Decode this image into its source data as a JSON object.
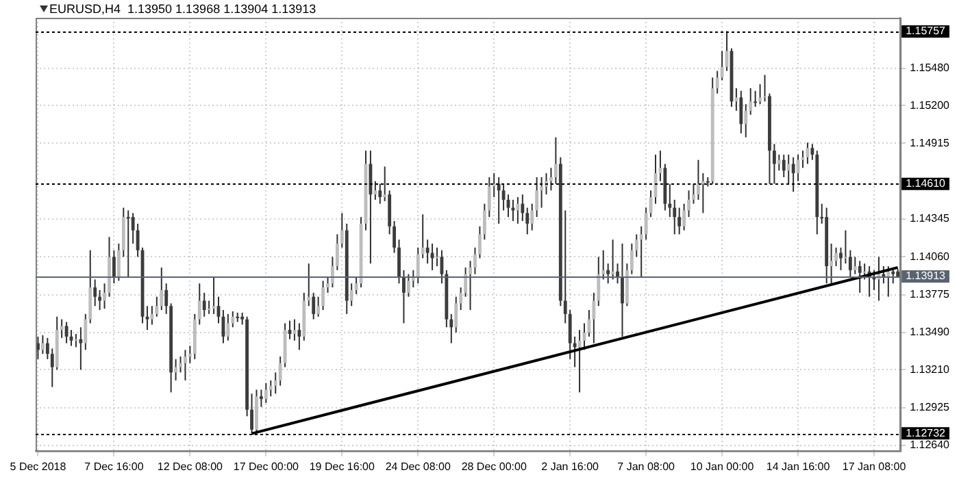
{
  "chart_data": {
    "type": "candlestick",
    "title": "EURUSD,H4  1.13950 1.13968 1.13904 1.13913",
    "categories": [
      "5 Dec 2018",
      null,
      null,
      null,
      null,
      null,
      null,
      null,
      null,
      null,
      null,
      null,
      null,
      null,
      null,
      null,
      "7 Dec 16:00",
      null,
      null,
      null,
      null,
      null,
      null,
      null,
      null,
      null,
      null,
      null,
      null,
      null,
      null,
      null,
      "12 Dec 08:00",
      null,
      null,
      null,
      null,
      null,
      null,
      null,
      null,
      null,
      null,
      null,
      null,
      null,
      null,
      null,
      "17 Dec 00:00",
      null,
      null,
      null,
      null,
      null,
      null,
      null,
      null,
      null,
      null,
      null,
      null,
      null,
      null,
      null,
      "19 Dec 16:00",
      null,
      null,
      null,
      null,
      null,
      null,
      null,
      null,
      null,
      null,
      null,
      null,
      null,
      null,
      null,
      "24 Dec 08:00",
      null,
      null,
      null,
      null,
      null,
      null,
      null,
      null,
      null,
      null,
      null,
      null,
      null,
      null,
      null,
      "28 Dec 00:00",
      null,
      null,
      null,
      null,
      null,
      null,
      null,
      null,
      null,
      null,
      null,
      null,
      null,
      null,
      null,
      "2 Jan 16:00",
      null,
      null,
      null,
      null,
      null,
      null,
      null,
      null,
      null,
      null,
      null,
      null,
      null,
      null,
      null,
      "7 Jan 08:00",
      null,
      null,
      null,
      null,
      null,
      null,
      null,
      null,
      null,
      null,
      null,
      null,
      null,
      null,
      null,
      "10 Jan 00:00",
      null,
      null,
      null,
      null,
      null,
      null,
      null,
      null,
      null,
      null,
      null,
      null,
      null,
      null,
      null,
      "14 Jan 16:00",
      null,
      null,
      null,
      null,
      null,
      null,
      null,
      null,
      null,
      null,
      null,
      null,
      null,
      null,
      null,
      "17 Jan 08:00",
      null,
      null,
      null,
      null,
      null
    ],
    "ohlc": [
      [
        1.1341,
        1.1346,
        1.1329,
        1.1336
      ],
      [
        1.1336,
        1.1347,
        1.1333,
        1.1341
      ],
      [
        1.1341,
        1.1345,
        1.1329,
        1.1333
      ],
      [
        1.1333,
        1.1337,
        1.1308,
        1.1323
      ],
      [
        1.1323,
        1.1361,
        1.1321,
        1.1351
      ],
      [
        1.1351,
        1.1359,
        1.1345,
        1.1354
      ],
      [
        1.1354,
        1.1357,
        1.1341,
        1.1346
      ],
      [
        1.1346,
        1.1351,
        1.1339,
        1.1343
      ],
      [
        1.1343,
        1.1348,
        1.1338,
        1.1344
      ],
      [
        1.1344,
        1.1353,
        1.1321,
        1.1341
      ],
      [
        1.1341,
        1.1363,
        1.1336,
        1.1359
      ],
      [
        1.1359,
        1.1411,
        1.1356,
        1.1383
      ],
      [
        1.1383,
        1.1389,
        1.1369,
        1.1376
      ],
      [
        1.1376,
        1.1381,
        1.1366,
        1.1373
      ],
      [
        1.1373,
        1.1386,
        1.1367,
        1.1379
      ],
      [
        1.1379,
        1.1421,
        1.1376,
        1.1406
      ],
      [
        1.1406,
        1.1411,
        1.1386,
        1.1391
      ],
      [
        1.1391,
        1.1416,
        1.1388,
        1.1411
      ],
      [
        1.1411,
        1.1443,
        1.1406,
        1.1436
      ],
      [
        1.1436,
        1.1441,
        1.1391,
        1.1436
      ],
      [
        1.1436,
        1.1439,
        1.1416,
        1.1426
      ],
      [
        1.1426,
        1.1431,
        1.1406,
        1.1411
      ],
      [
        1.1411,
        1.1413,
        1.1356,
        1.1361
      ],
      [
        1.1361,
        1.1369,
        1.1351,
        1.1359
      ],
      [
        1.1359,
        1.1369,
        1.1355,
        1.1363
      ],
      [
        1.1363,
        1.1376,
        1.1361,
        1.1369
      ],
      [
        1.1369,
        1.1398,
        1.1366,
        1.1381
      ],
      [
        1.1381,
        1.1386,
        1.1363,
        1.1369
      ],
      [
        1.1369,
        1.1371,
        1.1304,
        1.1319
      ],
      [
        1.1319,
        1.1329,
        1.1313,
        1.1323
      ],
      [
        1.1323,
        1.1331,
        1.1319,
        1.1326
      ],
      [
        1.1326,
        1.1336,
        1.1313,
        1.1331
      ],
      [
        1.1331,
        1.1339,
        1.1326,
        1.1333
      ],
      [
        1.1333,
        1.1363,
        1.1329,
        1.1359
      ],
      [
        1.1359,
        1.1386,
        1.1355,
        1.1373
      ],
      [
        1.1373,
        1.1379,
        1.1361,
        1.1366
      ],
      [
        1.1366,
        1.1373,
        1.1363,
        1.1367
      ],
      [
        1.1367,
        1.1391,
        1.1363,
        1.1369
      ],
      [
        1.1369,
        1.1376,
        1.1356,
        1.1361
      ],
      [
        1.1361,
        1.1366,
        1.1341,
        1.1346
      ],
      [
        1.1346,
        1.1363,
        1.1343,
        1.1356
      ],
      [
        1.1356,
        1.1365,
        1.1353,
        1.1361
      ],
      [
        1.1361,
        1.1364,
        1.1357,
        1.1361
      ],
      [
        1.1361,
        1.1364,
        1.1355,
        1.1359
      ],
      [
        1.1359,
        1.1361,
        1.1286,
        1.1291
      ],
      [
        1.1291,
        1.1303,
        1.1273,
        1.1276
      ],
      [
        1.1276,
        1.1306,
        1.1274,
        1.1301
      ],
      [
        1.1301,
        1.1306,
        1.1293,
        1.1299
      ],
      [
        1.1299,
        1.1311,
        1.1296,
        1.1306
      ],
      [
        1.1306,
        1.1313,
        1.1301,
        1.1309
      ],
      [
        1.1309,
        1.1319,
        1.1303,
        1.1313
      ],
      [
        1.1313,
        1.1331,
        1.1309,
        1.1326
      ],
      [
        1.1326,
        1.1356,
        1.1323,
        1.1351
      ],
      [
        1.1351,
        1.1358,
        1.1344,
        1.1348
      ],
      [
        1.1348,
        1.1359,
        1.1343,
        1.1351
      ],
      [
        1.1351,
        1.1356,
        1.1336,
        1.1346
      ],
      [
        1.1346,
        1.1379,
        1.1343,
        1.1373
      ],
      [
        1.1373,
        1.1401,
        1.1369,
        1.1376
      ],
      [
        1.1376,
        1.1379,
        1.1359,
        1.1363
      ],
      [
        1.1363,
        1.1376,
        1.1361,
        1.1369
      ],
      [
        1.1369,
        1.1388,
        1.1366,
        1.1383
      ],
      [
        1.1383,
        1.1391,
        1.1379,
        1.1386
      ],
      [
        1.1386,
        1.1406,
        1.1383,
        1.1399
      ],
      [
        1.1399,
        1.1423,
        1.1396,
        1.1416
      ],
      [
        1.1416,
        1.1439,
        1.1413,
        1.1426
      ],
      [
        1.1426,
        1.1431,
        1.1363,
        1.1373
      ],
      [
        1.1373,
        1.1386,
        1.1369,
        1.1381
      ],
      [
        1.1381,
        1.1391,
        1.1378,
        1.1386
      ],
      [
        1.1386,
        1.1436,
        1.1383,
        1.1431
      ],
      [
        1.1431,
        1.1486,
        1.1426,
        1.1476
      ],
      [
        1.1476,
        1.1486,
        1.1401,
        1.1453
      ],
      [
        1.1453,
        1.1463,
        1.1449,
        1.1456
      ],
      [
        1.1456,
        1.1461,
        1.1446,
        1.1451
      ],
      [
        1.1451,
        1.1474,
        1.1448,
        1.1453
      ],
      [
        1.1453,
        1.1456,
        1.1423,
        1.1429
      ],
      [
        1.1429,
        1.1433,
        1.1409,
        1.1413
      ],
      [
        1.1413,
        1.1419,
        1.1386,
        1.1391
      ],
      [
        1.1391,
        1.1396,
        1.1356,
        1.1379
      ],
      [
        1.1379,
        1.1393,
        1.1376,
        1.1388
      ],
      [
        1.1388,
        1.1396,
        1.1383,
        1.1391
      ],
      [
        1.1391,
        1.1413,
        1.1386,
        1.1408
      ],
      [
        1.1408,
        1.1438,
        1.1405,
        1.1413
      ],
      [
        1.1413,
        1.1419,
        1.1401,
        1.1409
      ],
      [
        1.1409,
        1.1416,
        1.1396,
        1.1405
      ],
      [
        1.1405,
        1.1413,
        1.1399,
        1.1406
      ],
      [
        1.1406,
        1.1411,
        1.1386,
        1.1393
      ],
      [
        1.1393,
        1.1396,
        1.1353,
        1.1359
      ],
      [
        1.1359,
        1.1363,
        1.1341,
        1.1353
      ],
      [
        1.1353,
        1.1376,
        1.1349,
        1.1371
      ],
      [
        1.1371,
        1.1383,
        1.1366,
        1.1379
      ],
      [
        1.1379,
        1.1398,
        1.1376,
        1.1393
      ],
      [
        1.1393,
        1.1403,
        1.1366,
        1.1398
      ],
      [
        1.1398,
        1.1413,
        1.1393,
        1.1408
      ],
      [
        1.1408,
        1.1429,
        1.1405,
        1.1423
      ],
      [
        1.1423,
        1.1446,
        1.1419,
        1.1441
      ],
      [
        1.1441,
        1.1466,
        1.1436,
        1.1459
      ],
      [
        1.1459,
        1.1469,
        1.1451,
        1.1461
      ],
      [
        1.1461,
        1.1466,
        1.1431,
        1.1456
      ],
      [
        1.1456,
        1.1461,
        1.1441,
        1.1449
      ],
      [
        1.1449,
        1.1453,
        1.1436,
        1.1443
      ],
      [
        1.1443,
        1.1449,
        1.1433,
        1.1441
      ],
      [
        1.1441,
        1.1451,
        1.1431,
        1.1446
      ],
      [
        1.1446,
        1.1453,
        1.1433,
        1.1439
      ],
      [
        1.1439,
        1.1443,
        1.1423,
        1.1431
      ],
      [
        1.1431,
        1.1446,
        1.1426,
        1.1441
      ],
      [
        1.1441,
        1.1466,
        1.1436,
        1.1456
      ],
      [
        1.1456,
        1.1466,
        1.1443,
        1.1459
      ],
      [
        1.1459,
        1.1469,
        1.1453,
        1.1463
      ],
      [
        1.1463,
        1.1473,
        1.1456,
        1.1466
      ],
      [
        1.1466,
        1.1496,
        1.1461,
        1.1476
      ],
      [
        1.1476,
        1.1481,
        1.1369,
        1.1373
      ],
      [
        1.1373,
        1.1441,
        1.1356,
        1.1363
      ],
      [
        1.1363,
        1.1366,
        1.1329,
        1.1341
      ],
      [
        1.1341,
        1.1346,
        1.1323,
        1.1338
      ],
      [
        1.1338,
        1.1351,
        1.1304,
        1.1343
      ],
      [
        1.1343,
        1.1356,
        1.1336,
        1.1349
      ],
      [
        1.1349,
        1.1366,
        1.1346,
        1.1359
      ],
      [
        1.1359,
        1.1379,
        1.1341,
        1.1373
      ],
      [
        1.1373,
        1.1406,
        1.1369,
        1.1393
      ],
      [
        1.1393,
        1.1411,
        1.1389,
        1.1396
      ],
      [
        1.1396,
        1.1401,
        1.1386,
        1.1393
      ],
      [
        1.1393,
        1.1419,
        1.1389,
        1.1395
      ],
      [
        1.1395,
        1.1401,
        1.1386,
        1.1391
      ],
      [
        1.1391,
        1.1416,
        1.1346,
        1.1371
      ],
      [
        1.1371,
        1.1401,
        1.1369,
        1.1396
      ],
      [
        1.1396,
        1.1416,
        1.1393,
        1.1411
      ],
      [
        1.1411,
        1.1423,
        1.1406,
        1.1419
      ],
      [
        1.1419,
        1.1429,
        1.1391,
        1.1423
      ],
      [
        1.1423,
        1.1443,
        1.1419,
        1.1439
      ],
      [
        1.1439,
        1.1456,
        1.1436,
        1.1451
      ],
      [
        1.1451,
        1.1483,
        1.1446,
        1.1469
      ],
      [
        1.1469,
        1.1486,
        1.1463,
        1.1473
      ],
      [
        1.1473,
        1.1476,
        1.1441,
        1.1446
      ],
      [
        1.1446,
        1.1461,
        1.1436,
        1.1443
      ],
      [
        1.1443,
        1.1449,
        1.1423,
        1.1436
      ],
      [
        1.1436,
        1.1443,
        1.1423,
        1.1429
      ],
      [
        1.1429,
        1.1446,
        1.1426,
        1.1441
      ],
      [
        1.1441,
        1.1456,
        1.1436,
        1.1449
      ],
      [
        1.1449,
        1.1461,
        1.1446,
        1.1453
      ],
      [
        1.1453,
        1.1479,
        1.1449,
        1.1461
      ],
      [
        1.1461,
        1.1469,
        1.1439,
        1.1463
      ],
      [
        1.1463,
        1.1466,
        1.1459,
        1.1463
      ],
      [
        1.1463,
        1.1541,
        1.1461,
        1.1533
      ],
      [
        1.1533,
        1.1546,
        1.1529,
        1.1541
      ],
      [
        1.1541,
        1.1561,
        1.1539,
        1.1549
      ],
      [
        1.1549,
        1.1576,
        1.1546,
        1.1561
      ],
      [
        1.1561,
        1.1563,
        1.1519,
        1.1523
      ],
      [
        1.1523,
        1.1533,
        1.1516,
        1.1526
      ],
      [
        1.1526,
        1.1531,
        1.1499,
        1.1506
      ],
      [
        1.1506,
        1.1521,
        1.1496,
        1.1516
      ],
      [
        1.1516,
        1.1533,
        1.1513,
        1.1523
      ],
      [
        1.1523,
        1.1531,
        1.1519,
        1.1523
      ],
      [
        1.1523,
        1.1536,
        1.1521,
        1.1526
      ],
      [
        1.1526,
        1.1543,
        1.1523,
        1.1527
      ],
      [
        1.1527,
        1.1529,
        1.1461,
        1.1486
      ],
      [
        1.1486,
        1.1491,
        1.1461,
        1.1476
      ],
      [
        1.1476,
        1.1483,
        1.1471,
        1.1479
      ],
      [
        1.1479,
        1.1483,
        1.1466,
        1.1471
      ],
      [
        1.1471,
        1.1483,
        1.1461,
        1.1476
      ],
      [
        1.1476,
        1.1481,
        1.1455,
        1.1469
      ],
      [
        1.1469,
        1.1483,
        1.1463,
        1.1479
      ],
      [
        1.1479,
        1.1486,
        1.1473,
        1.1481
      ],
      [
        1.1481,
        1.1492,
        1.1476,
        1.1488
      ],
      [
        1.1488,
        1.1491,
        1.1479,
        1.1483
      ],
      [
        1.1483,
        1.1486,
        1.1423,
        1.1436
      ],
      [
        1.1436,
        1.1446,
        1.1431,
        1.1436
      ],
      [
        1.1436,
        1.1443,
        1.1386,
        1.1399
      ],
      [
        1.1399,
        1.1416,
        1.1386,
        1.1403
      ],
      [
        1.1403,
        1.1413,
        1.1399,
        1.1409
      ],
      [
        1.1409,
        1.1413,
        1.1396,
        1.1405
      ],
      [
        1.1405,
        1.1426,
        1.1401,
        1.1406
      ],
      [
        1.1406,
        1.1411,
        1.1391,
        1.1396
      ],
      [
        1.1396,
        1.1406,
        1.1393,
        1.1399
      ],
      [
        1.1399,
        1.1403,
        1.1379,
        1.1394
      ],
      [
        1.1394,
        1.1401,
        1.1389,
        1.1395
      ],
      [
        1.1395,
        1.1399,
        1.1376,
        1.1391
      ],
      [
        1.1391,
        1.1396,
        1.1381,
        1.1389
      ],
      [
        1.1389,
        1.1406,
        1.1373,
        1.1393
      ],
      [
        1.1393,
        1.1399,
        1.1386,
        1.1391
      ],
      [
        1.1391,
        1.1399,
        1.1376,
        1.1395
      ],
      [
        1.1395,
        1.1398,
        1.1386,
        1.1393
      ],
      [
        1.1395,
        1.13968,
        1.13904,
        1.13913
      ]
    ],
    "colors": [
      "#3c3c3c",
      "#bdbdbd",
      "#3c3c3c",
      "#3c3c3c",
      "#bdbdbd",
      "#bdbdbd",
      "#3c3c3c",
      "#3c3c3c",
      "#bdbdbd",
      "#3c3c3c",
      "#bdbdbd",
      "#bdbdbd",
      "#3c3c3c",
      "#3c3c3c",
      "#bdbdbd",
      "#bdbdbd",
      "#3c3c3c",
      "#bdbdbd",
      "#bdbdbd",
      "#3c3c3c",
      "#3c3c3c",
      "#3c3c3c",
      "#3c3c3c",
      "#3c3c3c",
      "#bdbdbd",
      "#bdbdbd",
      "#bdbdbd",
      "#3c3c3c",
      "#3c3c3c",
      "#bdbdbd",
      "#bdbdbd",
      "#bdbdbd",
      "#bdbdbd",
      "#bdbdbd",
      "#bdbdbd",
      "#3c3c3c",
      "#bdbdbd",
      "#bdbdbd",
      "#3c3c3c",
      "#3c3c3c",
      "#bdbdbd",
      "#bdbdbd",
      "#3c3c3c",
      "#3c3c3c",
      "#3c3c3c",
      "#3c3c3c",
      "#bdbdbd",
      "#3c3c3c",
      "#bdbdbd",
      "#bdbdbd",
      "#bdbdbd",
      "#bdbdbd",
      "#bdbdbd",
      "#3c3c3c",
      "#bdbdbd",
      "#3c3c3c",
      "#bdbdbd",
      "#bdbdbd",
      "#3c3c3c",
      "#bdbdbd",
      "#bdbdbd",
      "#bdbdbd",
      "#bdbdbd",
      "#bdbdbd",
      "#bdbdbd",
      "#3c3c3c",
      "#bdbdbd",
      "#bdbdbd",
      "#bdbdbd",
      "#bdbdbd",
      "#3c3c3c",
      "#bdbdbd",
      "#3c3c3c",
      "#bdbdbd",
      "#3c3c3c",
      "#3c3c3c",
      "#3c3c3c",
      "#3c3c3c",
      "#bdbdbd",
      "#bdbdbd",
      "#bdbdbd",
      "#bdbdbd",
      "#3c3c3c",
      "#3c3c3c",
      "#bdbdbd",
      "#3c3c3c",
      "#3c3c3c",
      "#3c3c3c",
      "#bdbdbd",
      "#bdbdbd",
      "#bdbdbd",
      "#bdbdbd",
      "#bdbdbd",
      "#bdbdbd",
      "#bdbdbd",
      "#bdbdbd",
      "#bdbdbd",
      "#3c3c3c",
      "#3c3c3c",
      "#3c3c3c",
      "#3c3c3c",
      "#bdbdbd",
      "#3c3c3c",
      "#3c3c3c",
      "#bdbdbd",
      "#bdbdbd",
      "#bdbdbd",
      "#bdbdbd",
      "#bdbdbd",
      "#bdbdbd",
      "#3c3c3c",
      "#3c3c3c",
      "#3c3c3c",
      "#3c3c3c",
      "#bdbdbd",
      "#bdbdbd",
      "#bdbdbd",
      "#bdbdbd",
      "#bdbdbd",
      "#bdbdbd",
      "#3c3c3c",
      "#bdbdbd",
      "#3c3c3c",
      "#3c3c3c",
      "#bdbdbd",
      "#bdbdbd",
      "#bdbdbd",
      "#bdbdbd",
      "#bdbdbd",
      "#bdbdbd",
      "#bdbdbd",
      "#bdbdbd",
      "#3c3c3c",
      "#3c3c3c",
      "#3c3c3c",
      "#3c3c3c",
      "#bdbdbd",
      "#bdbdbd",
      "#bdbdbd",
      "#bdbdbd",
      "#bdbdbd",
      "#3c3c3c",
      "#bdbdbd",
      "#bdbdbd",
      "#bdbdbd",
      "#bdbdbd",
      "#3c3c3c",
      "#bdbdbd",
      "#3c3c3c",
      "#bdbdbd",
      "#bdbdbd",
      "#3c3c3c",
      "#bdbdbd",
      "#bdbdbd",
      "#3c3c3c",
      "#3c3c3c",
      "#bdbdbd",
      "#3c3c3c",
      "#bdbdbd",
      "#3c3c3c",
      "#bdbdbd",
      "#bdbdbd",
      "#bdbdbd",
      "#3c3c3c",
      "#3c3c3c",
      "#3c3c3c",
      "#3c3c3c",
      "#bdbdbd",
      "#bdbdbd",
      "#3c3c3c",
      "#bdbdbd",
      "#3c3c3c",
      "#bdbdbd",
      "#3c3c3c",
      "#bdbdbd",
      "#3c3c3c",
      "#3c3c3c",
      "#bdbdbd",
      "#3c3c3c",
      "#bdbdbd",
      "#3c3c3c",
      "#3c3c3c"
    ],
    "series": [
      {
        "type": "line",
        "color": "#000000",
        "values": [
          null,
          null,
          null,
          null,
          null,
          null,
          null,
          null,
          null,
          null,
          null,
          null,
          null,
          null,
          null,
          null,
          null,
          null,
          null,
          null,
          null,
          null,
          null,
          null,
          null,
          null,
          null,
          null,
          null,
          null,
          null,
          null,
          null,
          null,
          null,
          null,
          null,
          null,
          null,
          null,
          null,
          null,
          null,
          null,
          null,
          1.1273,
          null,
          null,
          null,
          null,
          null,
          null,
          null,
          null,
          null,
          null,
          null,
          null,
          null,
          null,
          null,
          null,
          null,
          null,
          null,
          null,
          null,
          null,
          null,
          null,
          null,
          null,
          null,
          null,
          null,
          null,
          null,
          null,
          null,
          null,
          null,
          null,
          null,
          null,
          null,
          null,
          null,
          null,
          null,
          null,
          null,
          null,
          null,
          null,
          null,
          null,
          null,
          null,
          null,
          null,
          null,
          null,
          null,
          null,
          null,
          null,
          null,
          null,
          null,
          null,
          null,
          null,
          null,
          null,
          null,
          null,
          null,
          null,
          null,
          null,
          null,
          null,
          null,
          null,
          null,
          null,
          null,
          null,
          null,
          null,
          null,
          null,
          null,
          null,
          null,
          null,
          null,
          null,
          null,
          null,
          null,
          null,
          null,
          null,
          null,
          null,
          null,
          null,
          null,
          null,
          null,
          null,
          null,
          null,
          null,
          null,
          null,
          null,
          null,
          null,
          null,
          null,
          null,
          null,
          null,
          null,
          null,
          null,
          null,
          null,
          null,
          null,
          null,
          null,
          null,
          null,
          null,
          null,
          null,
          null,
          null,
          1.1398
        ]
      }
    ],
    "ylim": [
      1.126,
      1.1586
    ],
    "yticks": [
      {
        "value": 1.1264,
        "label": "1.12640"
      },
      1.12925,
      {
        "value": 1.1321,
        "label": "1.13210"
      },
      {
        "value": 1.1349,
        "label": "1.13490"
      },
      1.13775,
      {
        "value": 1.1406,
        "label": "1.14060"
      },
      1.14345,
      1.14915,
      {
        "value": 1.152,
        "label": "1.15200"
      },
      {
        "value": 1.1548,
        "label": "1.15480"
      }
    ],
    "grid": true,
    "ref_lines": [
      {
        "axis": "y",
        "value": 1.15757,
        "label": "1.15757",
        "color": "#000000",
        "line_style": "dotted"
      },
      {
        "axis": "y",
        "value": 1.1461,
        "label": "1.14610",
        "color": "#000000",
        "line_style": "dotted"
      },
      {
        "axis": "y",
        "value": 1.12732,
        "label": "1.12732",
        "color": "#000000",
        "line_style": "dotted"
      },
      {
        "axis": "y",
        "value": 1.13913,
        "label": "1.13913",
        "color": "#5a6470",
        "line_style": "solid"
      }
    ]
  }
}
